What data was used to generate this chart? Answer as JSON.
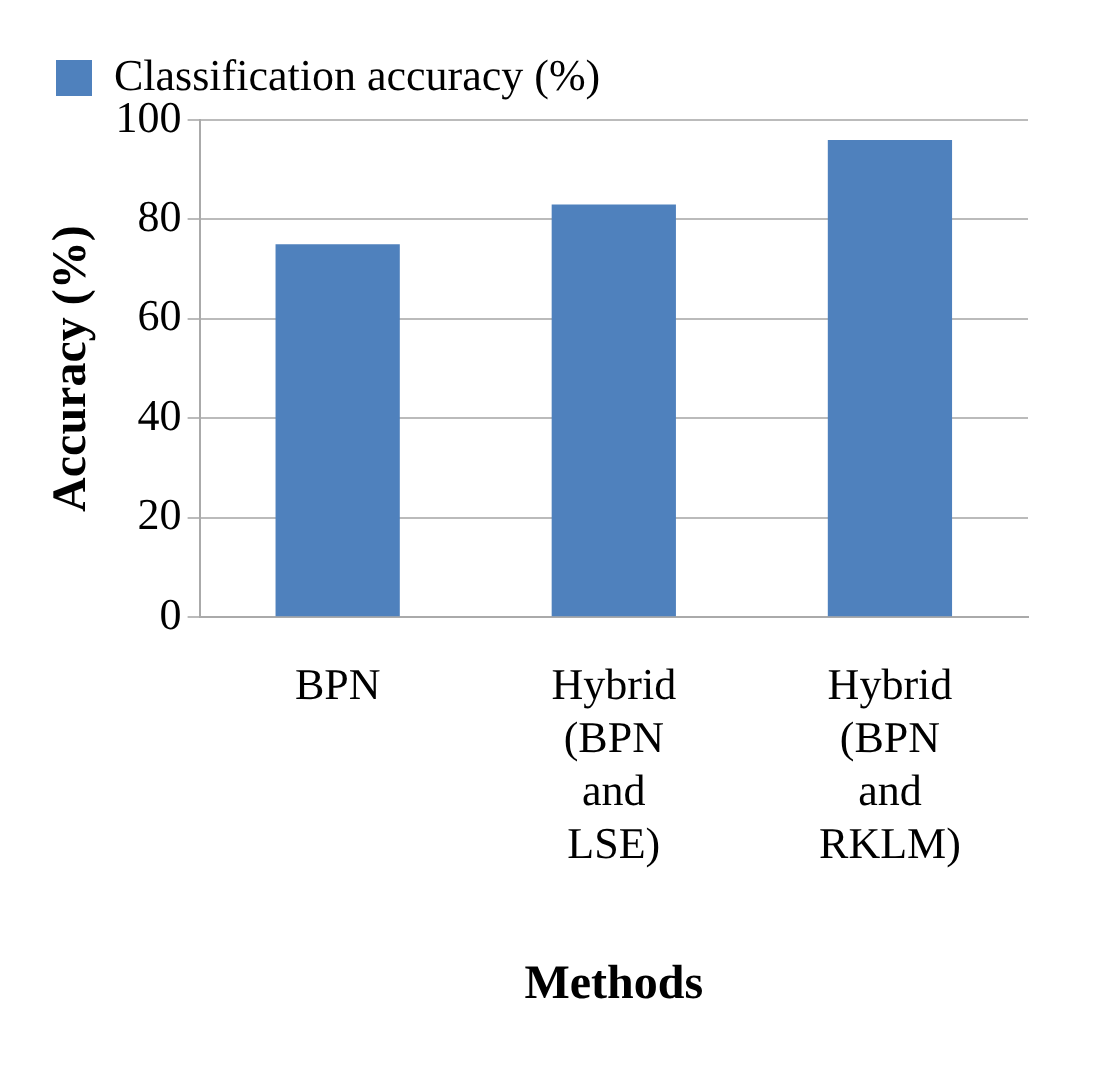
{
  "chart_data": {
    "type": "bar",
    "categories": [
      "BPN",
      "Hybrid (BPN and LSE)",
      "Hybrid (BPN and RKLM)"
    ],
    "series": [
      {
        "name": "Classification accuracy (%)",
        "color": "#4f81bd",
        "values": [
          75,
          83,
          96
        ]
      }
    ],
    "xlabel": "Methods",
    "ylabel": "Accuracy (%)",
    "ylim": [
      0,
      100
    ],
    "yticks": [
      0,
      20,
      40,
      60,
      80,
      100
    ],
    "grid": "y",
    "legend": "top left"
  }
}
